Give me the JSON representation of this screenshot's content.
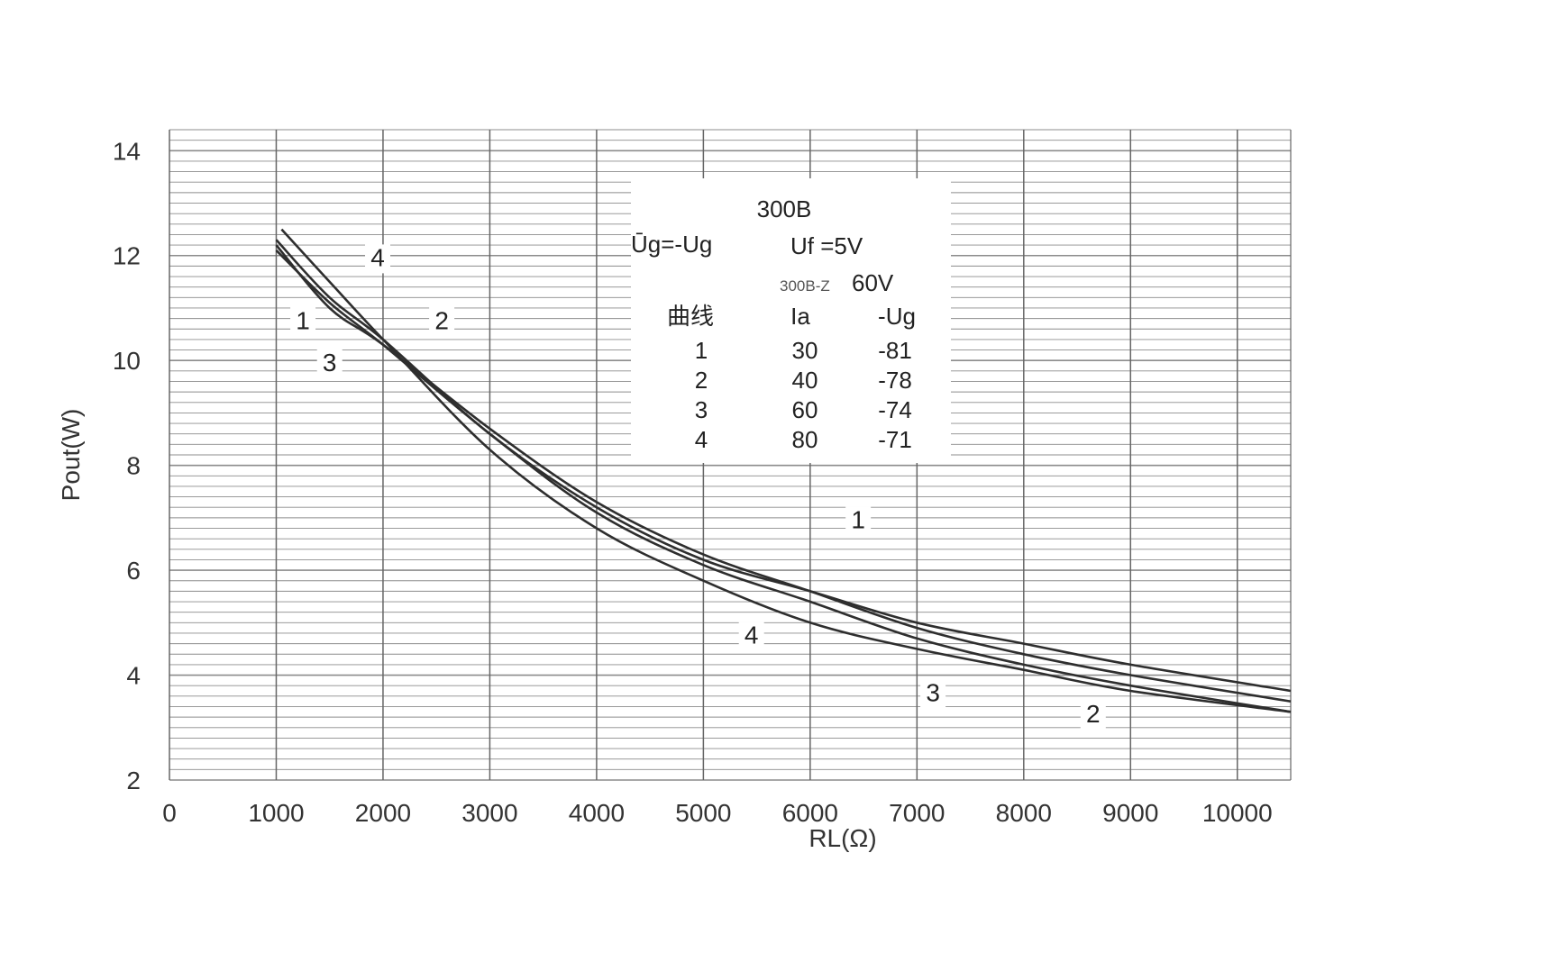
{
  "chart_data": {
    "type": "line",
    "xlabel": "RL(Ω)",
    "ylabel": "Pout(W)",
    "xlim": [
      0,
      10500
    ],
    "ylim": [
      2,
      14.4
    ],
    "x_ticks": [
      "0",
      "1000",
      "2000",
      "3000",
      "4000",
      "5000",
      "6000",
      "7000",
      "8000",
      "9000",
      "10000"
    ],
    "y_ticks": [
      "2",
      "4",
      "6",
      "8",
      "10",
      "12",
      "14"
    ],
    "grid": true,
    "series": [
      {
        "name": "1",
        "x": [
          1000,
          1500,
          2000,
          3000,
          4000,
          5000,
          6000,
          7000,
          8000,
          9000,
          10500
        ],
        "y": [
          12.3,
          11.2,
          10.4,
          8.6,
          7.2,
          6.2,
          5.6,
          5.0,
          4.6,
          4.2,
          3.7
        ]
      },
      {
        "name": "2",
        "x": [
          1000,
          1500,
          2000,
          3000,
          4000,
          5000,
          6000,
          7000,
          8000,
          9000,
          10500
        ],
        "y": [
          12.1,
          11.1,
          10.3,
          8.6,
          7.1,
          6.1,
          5.4,
          4.7,
          4.2,
          3.8,
          3.3
        ]
      },
      {
        "name": "3",
        "x": [
          1000,
          1500,
          2000,
          3000,
          4000,
          5000,
          6000,
          7000,
          8000,
          9000,
          10500
        ],
        "y": [
          12.2,
          11.0,
          10.3,
          8.7,
          7.3,
          6.3,
          5.6,
          4.9,
          4.4,
          4.0,
          3.5
        ]
      },
      {
        "name": "4",
        "x": [
          1050,
          1500,
          2000,
          3000,
          4000,
          5000,
          6000,
          7000,
          8000,
          9000,
          10500
        ],
        "y": [
          12.5,
          11.5,
          10.4,
          8.3,
          6.8,
          5.8,
          5.0,
          4.5,
          4.1,
          3.7,
          3.3
        ]
      }
    ],
    "curve_labels": [
      {
        "text": "1",
        "x": 1250,
        "y": 10.6
      },
      {
        "text": "2",
        "x": 2550,
        "y": 10.6
      },
      {
        "text": "3",
        "x": 1500,
        "y": 9.8
      },
      {
        "text": "4",
        "x": 1950,
        "y": 11.8
      },
      {
        "text": "1",
        "x": 6450,
        "y": 6.8
      },
      {
        "text": "4",
        "x": 5450,
        "y": 4.6
      },
      {
        "text": "3",
        "x": 7150,
        "y": 3.5
      },
      {
        "text": "2",
        "x": 8650,
        "y": 3.1
      }
    ],
    "legend": {
      "title": "300B",
      "line_left": "Ūg=-Ug",
      "line_right_main": "Uf =5V",
      "line3_small": "300B-Z",
      "line3_value": "60V",
      "columns": [
        "曲线",
        "Ia",
        "-Ug"
      ],
      "rows": [
        [
          "1",
          "30",
          "-81"
        ],
        [
          "2",
          "40",
          "-78"
        ],
        [
          "3",
          "60",
          "-74"
        ],
        [
          "4",
          "80",
          "-71"
        ]
      ]
    }
  },
  "colors": {
    "curve": "#2e2e2e",
    "grid": "#8c8c8c",
    "background": "#ffffff"
  }
}
